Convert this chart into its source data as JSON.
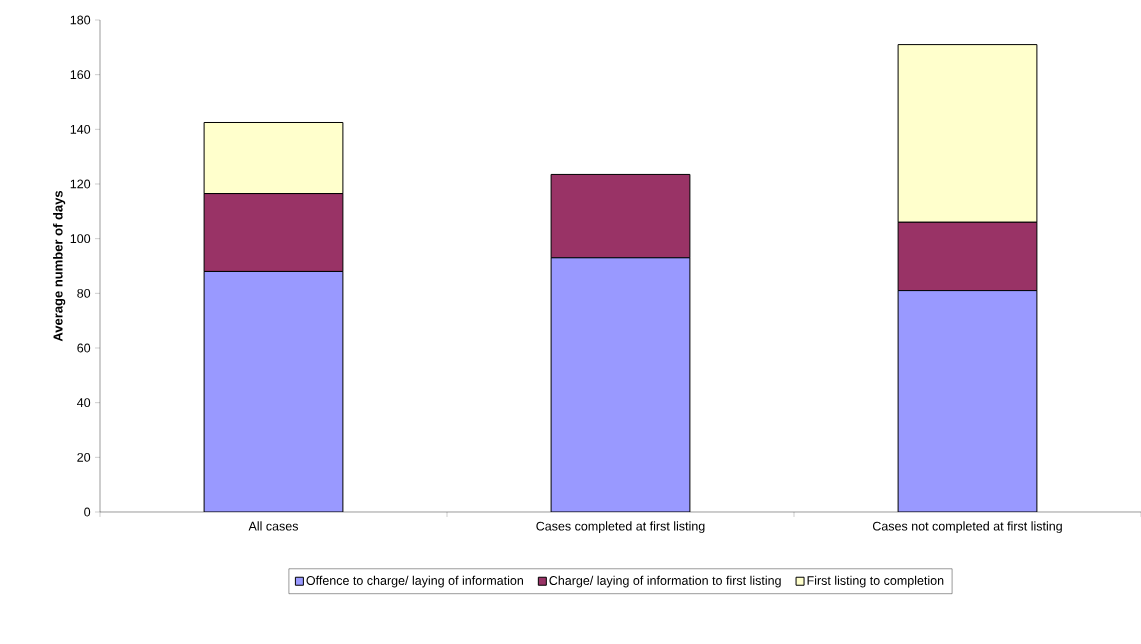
{
  "chart_data": {
    "type": "bar",
    "stacked": true,
    "ylabel": "Average number of days",
    "categories": [
      "All cases",
      "Cases completed at first listing",
      "Cases not completed at first listing"
    ],
    "series": [
      {
        "name": "Offence to charge/ laying of information",
        "color": "#9999ff",
        "values": [
          88,
          93,
          81
        ]
      },
      {
        "name": "Charge/ laying of information to first listing",
        "color": "#993366",
        "values": [
          28.5,
          30.5,
          25
        ]
      },
      {
        "name": "First listing to completion",
        "color": "#ffffcc",
        "values": [
          26,
          0,
          65
        ]
      }
    ],
    "ylim": [
      0,
      180
    ],
    "yticks": [
      0,
      20,
      40,
      60,
      80,
      100,
      120,
      140,
      160,
      180
    ],
    "legend": "bottom"
  }
}
